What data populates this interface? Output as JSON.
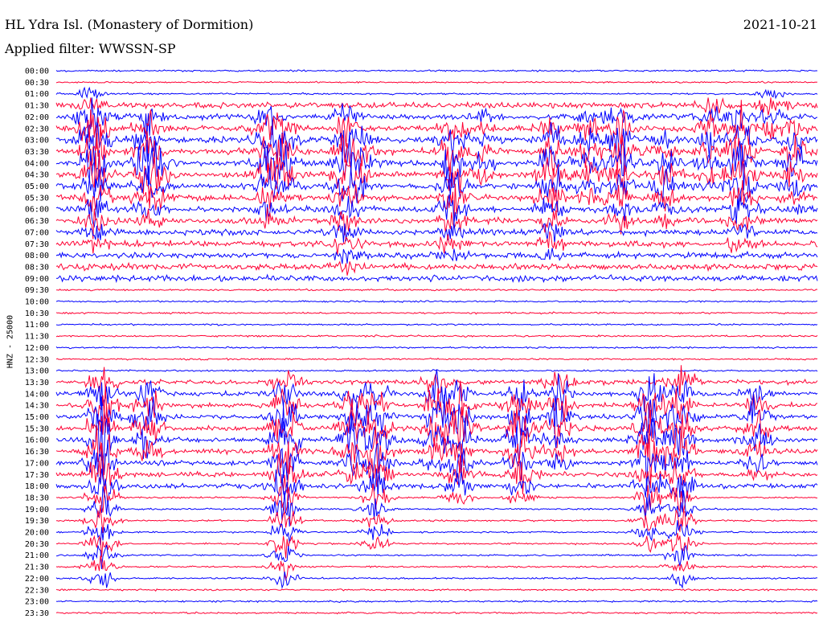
{
  "header": {
    "station_title": "HL Ydra Isl. (Monastery of Dormition)",
    "filter_label": "Applied filter: WWSSN-SP",
    "date": "2021-10-21"
  },
  "chart_data": {
    "type": "line",
    "title": "HL Ydra Isl. (Monastery of Dormition)",
    "subtitle": "Applied filter: WWSSN-SP",
    "date": "2021-10-21",
    "ylabel": "HNZ - 25000",
    "row_labels": [
      "00:00",
      "00:30",
      "01:00",
      "01:30",
      "02:00",
      "02:30",
      "03:00",
      "03:30",
      "04:00",
      "04:30",
      "05:00",
      "05:30",
      "06:00",
      "06:30",
      "07:00",
      "07:30",
      "08:00",
      "08:30",
      "09:00",
      "09:30",
      "10:00",
      "10:30",
      "11:00",
      "11:30",
      "12:00",
      "12:30",
      "13:00",
      "13:30",
      "14:00",
      "14:30",
      "15:00",
      "15:30",
      "16:00",
      "16:30",
      "17:00",
      "17:30",
      "18:00",
      "18:30",
      "19:00",
      "19:30",
      "20:00",
      "20:30",
      "21:00",
      "21:30",
      "22:00",
      "22:30",
      "23:00",
      "23:30"
    ],
    "colors": {
      "even_rows": "#0000ff",
      "odd_rows": "#ff0033",
      "text": "#000000",
      "background": "#ffffff"
    },
    "grid": false,
    "legend": "none"
  }
}
